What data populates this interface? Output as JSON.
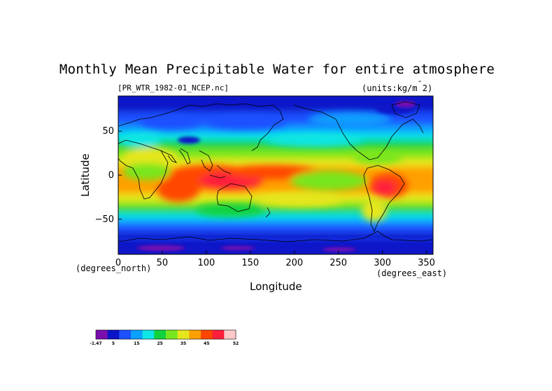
{
  "chart_data": {
    "type": "heatmap",
    "title": "Monthly Mean Precipitable Water for entire atmosphere",
    "subtitle_left": "[PR_WTR_1982-01_NCEP.nc]",
    "subtitle_right": "(units:kg/m^2)",
    "xlabel": "Longitude",
    "ylabel": "Latitude",
    "x_units": "(degrees_east)",
    "y_units": "(degrees_north)",
    "xlim": [
      0,
      357.5
    ],
    "ylim": [
      -90,
      90
    ],
    "x_ticks": [
      "0",
      "50",
      "100",
      "150",
      "200",
      "250",
      "300",
      "350"
    ],
    "y_ticks": [
      "50",
      "0",
      "-50"
    ],
    "grid": false,
    "colorbar": {
      "labels": [
        "-1.47",
        "5",
        "15",
        "25",
        "35",
        "45",
        "52"
      ],
      "colors": [
        "#7a0fb0",
        "#0a14c8",
        "#1e50ff",
        "#0aa0ff",
        "#10e6e6",
        "#10d23c",
        "#78e61e",
        "#e6e61e",
        "#ffa000",
        "#ff4600",
        "#ff1e3c",
        "#ffc8c8"
      ]
    }
  }
}
